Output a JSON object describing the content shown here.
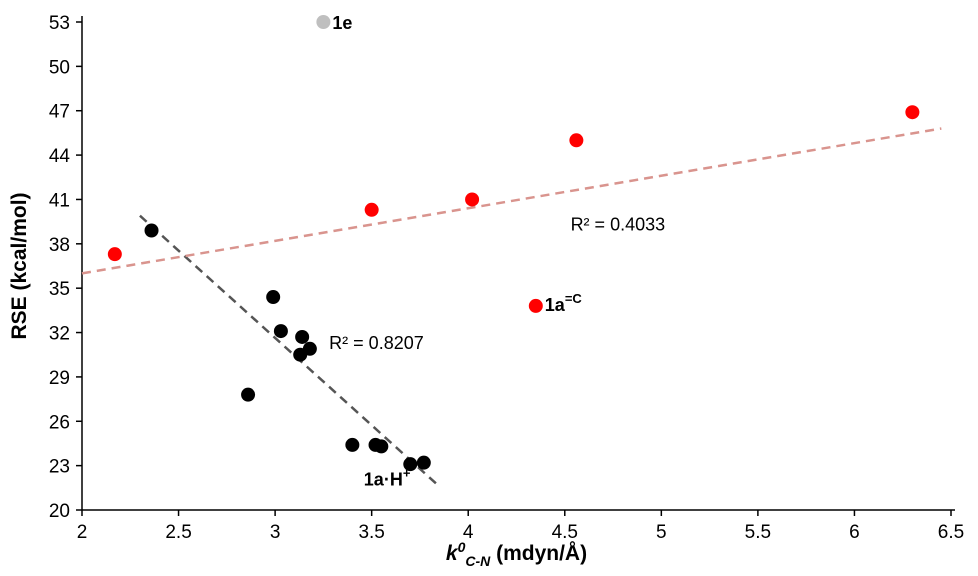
{
  "chart_data": {
    "type": "scatter",
    "title": "",
    "xlabel_prefix": "k",
    "xlabel_sup": "0",
    "xlabel_sub": "C-N",
    "xlabel_suffix": " (mdyn/Å)",
    "ylabel": "RSE (kcal/mol)",
    "xlim": [
      2,
      6.5
    ],
    "ylim": [
      20,
      53
    ],
    "x_ticks": [
      2,
      2.5,
      3,
      3.5,
      4,
      4.5,
      5,
      5.5,
      6,
      6.5
    ],
    "x_tick_labels": [
      "2",
      "2.5",
      "3",
      "3.5",
      "4",
      "4.5",
      "5",
      "5.5",
      "6",
      "6.5"
    ],
    "y_ticks": [
      20,
      23,
      26,
      29,
      32,
      35,
      38,
      41,
      44,
      47,
      50,
      53
    ],
    "y_tick_labels": [
      "20",
      "23",
      "26",
      "29",
      "32",
      "35",
      "38",
      "41",
      "44",
      "47",
      "50",
      "53"
    ],
    "grid": false,
    "series": [
      {
        "color": "#000000",
        "points": [
          [
            2.36,
            38.9
          ],
          [
            2.86,
            27.8
          ],
          [
            2.99,
            34.4
          ],
          [
            3.03,
            32.1
          ],
          [
            3.13,
            30.5
          ],
          [
            3.14,
            31.7
          ],
          [
            3.18,
            30.9
          ],
          [
            3.4,
            24.4
          ],
          [
            3.52,
            24.4
          ],
          [
            3.55,
            24.3
          ],
          [
            3.7,
            23.1
          ],
          [
            3.77,
            23.2
          ]
        ]
      },
      {
        "color": "#ff0000",
        "points": [
          [
            2.17,
            37.3
          ],
          [
            3.5,
            40.3
          ],
          [
            4.02,
            41.0
          ],
          [
            4.35,
            33.8
          ],
          [
            4.56,
            45.0
          ],
          [
            6.3,
            46.9
          ]
        ]
      },
      {
        "color": "#bfbfbf",
        "points": [
          [
            3.25,
            53.0
          ]
        ]
      }
    ],
    "trendlines": [
      {
        "name": "black-fit",
        "color": "#555555",
        "x": [
          2.3,
          3.85
        ],
        "y": [
          39.9,
          21.6
        ],
        "r2_label": "R² = 0.8207"
      },
      {
        "name": "red-fit",
        "color": "#d9948e",
        "x": [
          2.0,
          6.45
        ],
        "y": [
          36.0,
          45.8
        ],
        "r2_label": "R² = 0.4033"
      }
    ],
    "point_labels": [
      {
        "base": "1e",
        "sup": "",
        "x": 3.25,
        "y": 53.0
      },
      {
        "base": "1a",
        "sup": "=C",
        "x": 4.35,
        "y": 33.8
      },
      {
        "base": "1a·H",
        "sup": "+",
        "x": 3.77,
        "y": 23.2
      }
    ]
  }
}
